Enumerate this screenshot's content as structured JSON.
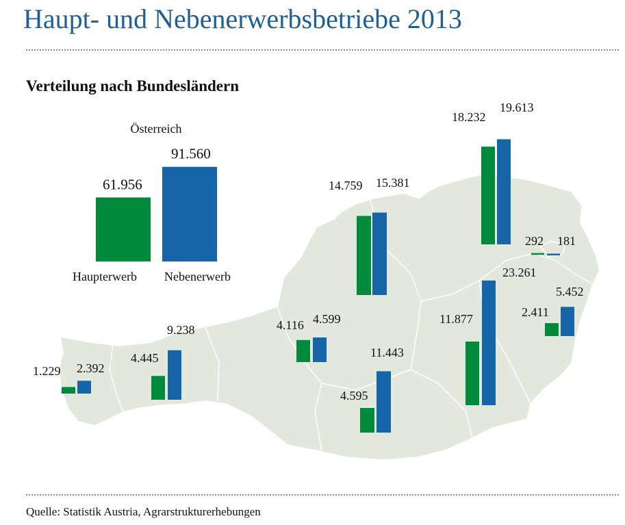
{
  "title": "Haupt- und Nebenerwerbsbetriebe 2013",
  "subtitle": "Verteilung nach Bundesländern",
  "source": "Quelle: Statistik Austria, Agrarstrukturerhebungen",
  "colors": {
    "haupterwerb": "#008a3c",
    "nebenerwerb": "#1565a8",
    "map_fill": "#e2e8dc",
    "map_border": "#ffffff"
  },
  "chart_data": {
    "type": "bar",
    "series_names": [
      "Haupterwerb",
      "Nebenerwerb"
    ],
    "national": {
      "label": "Österreich",
      "haupterwerb": 61956,
      "nebenerwerb": 91560,
      "haupterwerb_label": "61.956",
      "nebenerwerb_label": "91.560",
      "legend_haupterwerb": "Haupterwerb",
      "legend_nebenerwerb": "Nebenerwerb"
    },
    "regions": [
      {
        "key": "vorarlberg",
        "haupterwerb": 1229,
        "nebenerwerb": 2392,
        "haupterwerb_label": "1.229",
        "nebenerwerb_label": "2.392"
      },
      {
        "key": "tirol",
        "haupterwerb": 4445,
        "nebenerwerb": 9238,
        "haupterwerb_label": "4.445",
        "nebenerwerb_label": "9.238"
      },
      {
        "key": "salzburg",
        "haupterwerb": 4116,
        "nebenerwerb": 4599,
        "haupterwerb_label": "4.116",
        "nebenerwerb_label": "4.599"
      },
      {
        "key": "oberoesterreich",
        "haupterwerb": 14759,
        "nebenerwerb": 15381,
        "haupterwerb_label": "14.759",
        "nebenerwerb_label": "15.381"
      },
      {
        "key": "niederoesterreich",
        "haupterwerb": 18232,
        "nebenerwerb": 19613,
        "haupterwerb_label": "18.232",
        "nebenerwerb_label": "19.613"
      },
      {
        "key": "wien",
        "haupterwerb": 292,
        "nebenerwerb": 181,
        "haupterwerb_label": "292",
        "nebenerwerb_label": "181"
      },
      {
        "key": "steiermark",
        "haupterwerb": 11877,
        "nebenerwerb": 23261,
        "haupterwerb_label": "11.877",
        "nebenerwerb_label": "23.261"
      },
      {
        "key": "burgenland",
        "haupterwerb": 2411,
        "nebenerwerb": 5452,
        "haupterwerb_label": "2.411",
        "nebenerwerb_label": "5.452"
      },
      {
        "key": "kaernten",
        "haupterwerb": 4595,
        "nebenerwerb": 11443,
        "haupterwerb_label": "4.595",
        "nebenerwerb_label": "11.443"
      }
    ]
  }
}
